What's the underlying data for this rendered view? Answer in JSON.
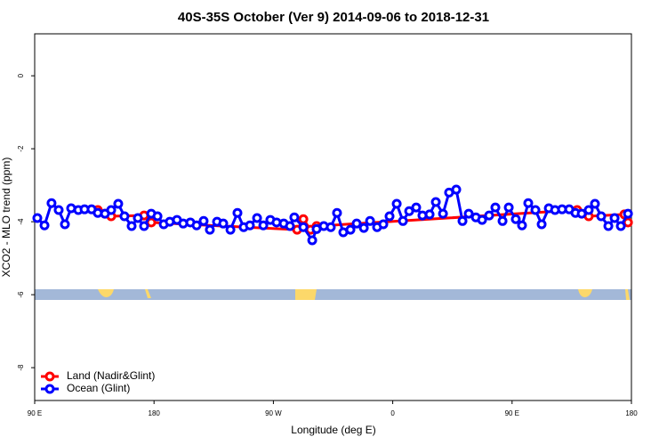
{
  "chart_data": {
    "type": "line",
    "title": "40S-35S October (Ver 9)   2014-09-06 to 2018-12-31",
    "x_label": "Longitude (deg E)",
    "y_label": "XCO2 - MLO trend (ppm)",
    "xlim": [
      90,
      540
    ],
    "ylim": [
      1.15,
      -8.9
    ],
    "xticks": [
      {
        "value": 90,
        "label": "90 E"
      },
      180,
      {
        "value": 270,
        "label": "90 W"
      },
      {
        "value": 360,
        "label": "0"
      },
      {
        "value": 450,
        "label": "90 E"
      },
      {
        "value": 540,
        "label": "180"
      }
    ],
    "yticks": [
      0,
      -2,
      -4,
      -6,
      -8
    ],
    "grid": false,
    "legend": "bottom-left",
    "series": [
      {
        "name": "Land (Nadir&Glint)",
        "color": "#ff0000",
        "x": [
          137.6,
          143.0,
          147.7,
          172.5,
          177.9,
          287.9,
          292.6,
          298.0,
          302.6,
          499.1,
          507.8,
          534.7,
          537.4
        ],
        "values": [
          -3.68,
          -3.78,
          -3.85,
          -3.83,
          -4.02,
          -4.22,
          -3.93,
          -4.22,
          -4.12,
          -3.68,
          -3.85,
          -3.8,
          -4.02
        ]
      },
      {
        "name": "Ocean (Glint)",
        "color": "#0000ff",
        "x": [
          92.0,
          97.4,
          102.7,
          108.1,
          112.8,
          117.5,
          122.9,
          127.6,
          132.9,
          137.6,
          143.0,
          147.7,
          153.0,
          157.7,
          163.1,
          167.8,
          172.5,
          177.9,
          182.6,
          187.3,
          191.9,
          197.3,
          202.0,
          207.4,
          212.1,
          217.4,
          222.1,
          227.5,
          232.2,
          237.6,
          242.9,
          247.6,
          252.3,
          257.7,
          262.4,
          267.7,
          272.4,
          277.8,
          282.5,
          285.8,
          292.6,
          299.3,
          302.6,
          308.0,
          313.3,
          318.0,
          322.7,
          328.1,
          332.8,
          338.2,
          342.9,
          348.2,
          352.9,
          357.6,
          363.0,
          367.7,
          372.4,
          377.7,
          382.4,
          387.8,
          392.5,
          397.9,
          402.5,
          407.9,
          412.6,
          417.3,
          422.7,
          427.4,
          432.7,
          437.4,
          442.8,
          447.5,
          452.8,
          457.5,
          462.2,
          467.6,
          472.3,
          477.7,
          482.4,
          487.7,
          493.1,
          497.8,
          502.5,
          507.8,
          512.5,
          517.2,
          522.6,
          527.3,
          532.0,
          537.4
        ],
        "values": [
          -3.9,
          -4.1,
          -3.49,
          -3.68,
          -4.07,
          -3.63,
          -3.68,
          -3.66,
          -3.66,
          -3.76,
          -3.78,
          -3.68,
          -3.51,
          -3.85,
          -4.12,
          -3.9,
          -4.12,
          -3.78,
          -3.85,
          -4.07,
          -4.0,
          -3.95,
          -4.05,
          -4.02,
          -4.1,
          -3.98,
          -4.22,
          -4.0,
          -4.05,
          -4.22,
          -3.76,
          -4.15,
          -4.1,
          -3.9,
          -4.1,
          -3.95,
          -4.02,
          -4.05,
          -4.12,
          -3.88,
          -4.15,
          -4.51,
          -4.2,
          -4.12,
          -4.15,
          -3.76,
          -4.29,
          -4.22,
          -4.05,
          -4.17,
          -3.98,
          -4.15,
          -4.07,
          -3.85,
          -3.51,
          -3.98,
          -3.71,
          -3.61,
          -3.83,
          -3.8,
          -3.46,
          -3.78,
          -3.2,
          -3.12,
          -3.98,
          -3.78,
          -3.88,
          -3.95,
          -3.83,
          -3.61,
          -3.98,
          -3.61,
          -3.93,
          -4.1,
          -3.49,
          -3.68,
          -4.07,
          -3.63,
          -3.68,
          -3.66,
          -3.66,
          -3.76,
          -3.78,
          -3.68,
          -3.51,
          -3.85,
          -4.12,
          -3.9,
          -4.12,
          -3.78
        ]
      }
    ]
  }
}
